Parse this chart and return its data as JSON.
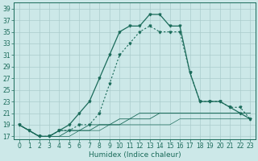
{
  "title": "",
  "xlabel": "Humidex (Indice chaleur)",
  "bg_color": "#cce8e8",
  "grid_color": "#aacccc",
  "line_color": "#1a6b5a",
  "ylim": [
    16.5,
    40
  ],
  "xlim": [
    -0.5,
    23.5
  ],
  "yticks": [
    17,
    19,
    21,
    23,
    25,
    27,
    29,
    31,
    33,
    35,
    37,
    39
  ],
  "xticks": [
    0,
    1,
    2,
    3,
    4,
    5,
    6,
    7,
    8,
    9,
    10,
    11,
    12,
    13,
    14,
    15,
    16,
    17,
    18,
    19,
    20,
    21,
    22,
    23
  ],
  "curve_main_x": [
    0,
    1,
    2,
    3,
    4,
    5,
    6,
    7,
    8,
    9,
    10,
    11,
    12,
    13,
    14,
    15,
    16,
    17,
    18,
    19,
    20,
    21,
    22,
    23
  ],
  "curve_main_y": [
    19,
    18,
    17,
    17,
    18,
    19,
    21,
    23,
    27,
    31,
    35,
    36,
    36,
    38,
    38,
    36,
    36,
    28,
    23,
    23,
    23,
    22,
    21,
    20
  ],
  "curve_dotted_x": [
    0,
    1,
    2,
    3,
    4,
    5,
    6,
    7,
    8,
    9,
    10,
    11,
    12,
    13,
    14,
    15,
    16,
    17,
    18,
    19,
    20,
    21,
    22,
    23
  ],
  "curve_dotted_y": [
    19,
    18,
    17,
    17,
    18,
    18,
    19,
    19,
    21,
    26,
    31,
    33,
    35,
    36,
    35,
    35,
    35,
    28,
    23,
    23,
    23,
    22,
    22,
    20
  ],
  "curve_flat1_x": [
    0,
    1,
    2,
    3,
    4,
    5,
    6,
    7,
    8,
    9,
    10,
    11,
    12,
    13,
    14,
    15,
    16,
    17,
    18,
    19,
    20,
    21,
    22,
    23
  ],
  "curve_flat1_y": [
    19,
    18,
    17,
    17,
    18,
    18,
    18,
    19,
    19,
    19,
    20,
    20,
    21,
    21,
    21,
    21,
    21,
    21,
    21,
    21,
    21,
    21,
    21,
    21
  ],
  "curve_flat2_x": [
    0,
    1,
    2,
    3,
    4,
    5,
    6,
    7,
    8,
    9,
    10,
    11,
    12,
    13,
    14,
    15,
    16,
    17,
    18,
    19,
    20,
    21,
    22,
    23
  ],
  "curve_flat2_y": [
    19,
    18,
    17,
    17,
    17,
    18,
    18,
    18,
    19,
    19,
    19,
    20,
    20,
    20,
    21,
    21,
    21,
    21,
    21,
    21,
    21,
    21,
    21,
    21
  ],
  "curve_flat3_x": [
    0,
    1,
    2,
    3,
    4,
    5,
    6,
    7,
    8,
    9,
    10,
    11,
    12,
    13,
    14,
    15,
    16,
    17,
    18,
    19,
    20,
    21,
    22,
    23
  ],
  "curve_flat3_y": [
    19,
    18,
    17,
    17,
    17,
    17,
    18,
    18,
    18,
    19,
    19,
    19,
    19,
    19,
    19,
    19,
    20,
    20,
    20,
    20,
    20,
    20,
    20,
    20
  ],
  "fontsize_xlabel": 6.5,
  "fontsize_tick": 5.5,
  "marker_size": 2.0,
  "lw_main": 0.9,
  "lw_dotted": 0.8,
  "lw_flat": 0.6
}
